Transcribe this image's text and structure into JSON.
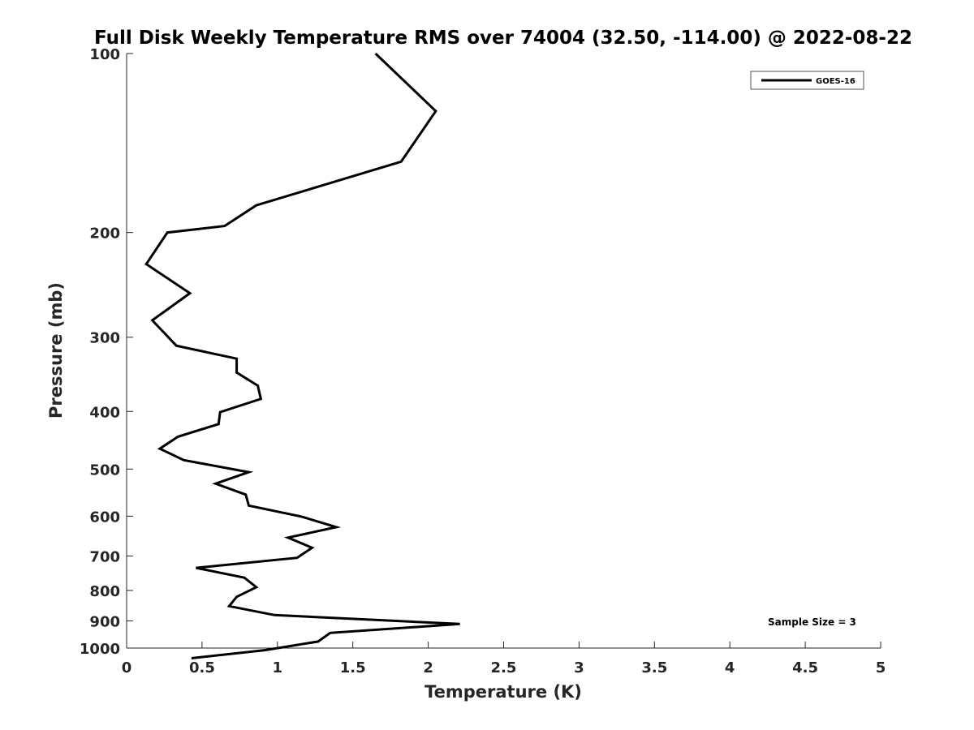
{
  "chart_data": {
    "type": "line",
    "title": "Full Disk Weekly Temperature RMS over 74004 (32.50, -114.00) @ 2022-08-22",
    "xlabel": "Temperature (K)",
    "ylabel": "Pressure (mb)",
    "xlim": [
      0,
      5
    ],
    "ylim": [
      100,
      1000
    ],
    "yscale": "log",
    "y_reversed": true,
    "grid": false,
    "legend_position": "top-right",
    "x_ticks": [
      0,
      0.5,
      1,
      1.5,
      2,
      2.5,
      3,
      3.5,
      4,
      4.5,
      5
    ],
    "x_tick_labels": [
      "0",
      "0.5",
      "1",
      "1.5",
      "2",
      "2.5",
      "3",
      "3.5",
      "4",
      "4.5",
      "5"
    ],
    "y_ticks": [
      100,
      200,
      300,
      400,
      500,
      600,
      700,
      800,
      900,
      1000
    ],
    "y_tick_labels": [
      "100",
      "200",
      "300",
      "400",
      "500",
      "600",
      "700",
      "800",
      "900",
      "1000"
    ],
    "series": [
      {
        "name": "GOES-16",
        "color": "#000000",
        "points": [
          [
            1.65,
            100
          ],
          [
            2.05,
            125
          ],
          [
            1.82,
            152
          ],
          [
            0.86,
            180
          ],
          [
            0.65,
            195
          ],
          [
            0.27,
            200
          ],
          [
            0.13,
            226
          ],
          [
            0.42,
            253
          ],
          [
            0.17,
            281
          ],
          [
            0.33,
            310
          ],
          [
            0.73,
            326
          ],
          [
            0.73,
            344
          ],
          [
            0.87,
            362
          ],
          [
            0.89,
            381
          ],
          [
            0.62,
            401
          ],
          [
            0.61,
            420
          ],
          [
            0.34,
            441
          ],
          [
            0.22,
            462
          ],
          [
            0.38,
            483
          ],
          [
            0.81,
            506
          ],
          [
            0.59,
            529
          ],
          [
            0.79,
            552
          ],
          [
            0.81,
            576
          ],
          [
            1.16,
            601
          ],
          [
            1.39,
            626
          ],
          [
            1.07,
            652
          ],
          [
            1.23,
            678
          ],
          [
            1.13,
            705
          ],
          [
            0.46,
            733
          ],
          [
            0.78,
            761
          ],
          [
            0.86,
            790
          ],
          [
            0.73,
            820
          ],
          [
            0.68,
            850
          ],
          [
            0.98,
            880
          ],
          [
            2.21,
            911
          ],
          [
            1.35,
            943
          ],
          [
            1.27,
            975
          ],
          [
            0.92,
            1008
          ],
          [
            0.43,
            1040
          ]
        ]
      }
    ],
    "annotations": [
      "Sample Size = 3"
    ]
  }
}
